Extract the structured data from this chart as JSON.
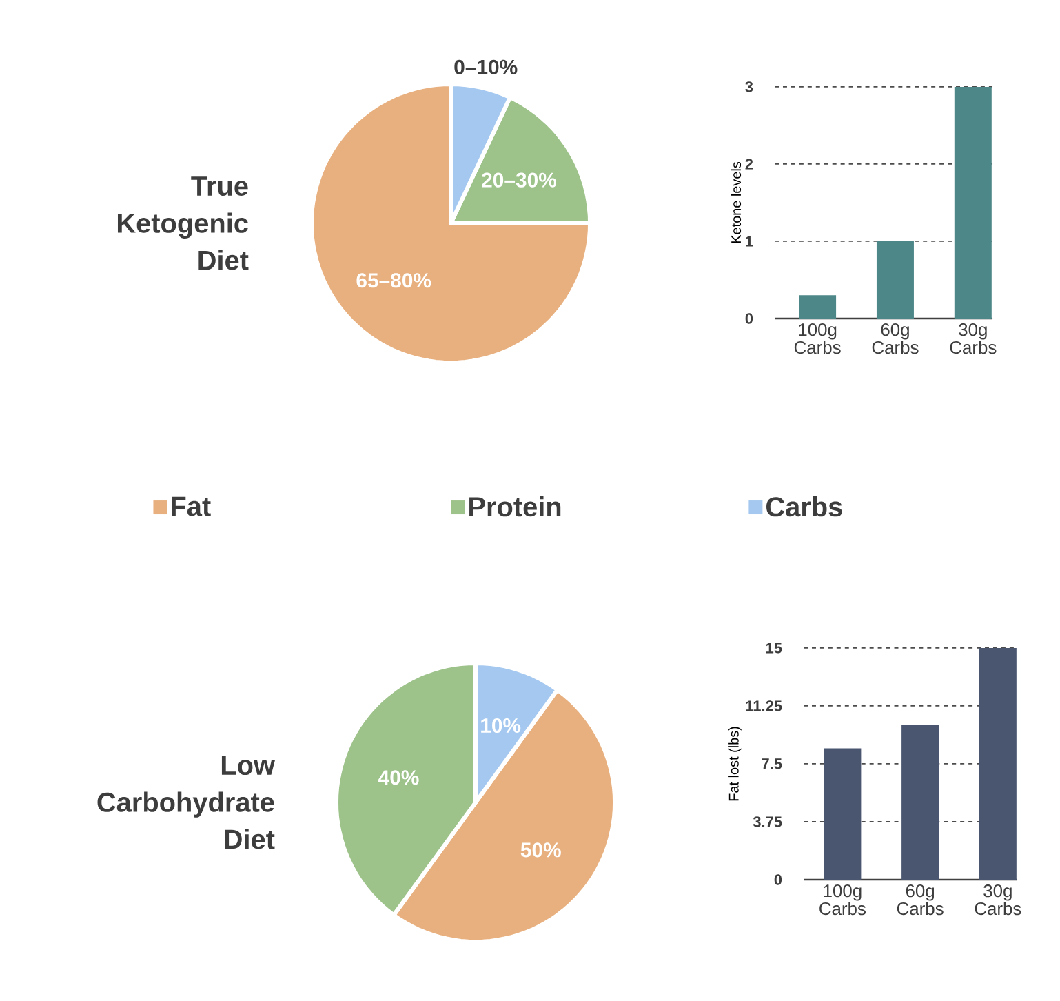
{
  "chart_data": [
    {
      "type": "pie",
      "title": "True Ketogenic Diet",
      "categories": [
        "Fat",
        "Protein",
        "Carbs"
      ],
      "values": [
        75,
        18,
        7
      ],
      "colors": [
        "#e8b07f",
        "#9dc28a",
        "#a4c8ef"
      ],
      "annotations": [
        "65–80%",
        "20–30%",
        "0–10%"
      ],
      "legend": "bottom"
    },
    {
      "type": "bar",
      "categories": [
        "100g Carbs",
        "60g Carbs",
        "30g Carbs"
      ],
      "values": [
        0.3,
        1,
        3
      ],
      "color": "#4e8788",
      "ylabel": "Ketone levels",
      "ylim": [
        0,
        3
      ],
      "yticks": [
        0,
        1,
        2,
        3
      ],
      "grid": "y"
    },
    {
      "type": "pie",
      "title": "Low Carbohydrate Diet",
      "categories": [
        null,
        null,
        null
      ],
      "values": [
        50,
        40,
        10
      ],
      "colors": [
        "#e8b07f",
        "#9dc28a",
        "#a4c8ef"
      ],
      "value_labels": [
        "50%",
        "40%",
        "10%"
      ]
    },
    {
      "type": "bar",
      "categories": [
        "100g Carbs",
        "60g Carbs",
        "30g Carbs"
      ],
      "values": [
        8.5,
        10,
        15
      ],
      "color": "#4a5670",
      "ylabel": "Fat lost  (lbs)",
      "ylim": [
        0,
        15
      ],
      "yticks": [
        0,
        3.75,
        7.5,
        11.25,
        15
      ],
      "grid": "y"
    }
  ]
}
